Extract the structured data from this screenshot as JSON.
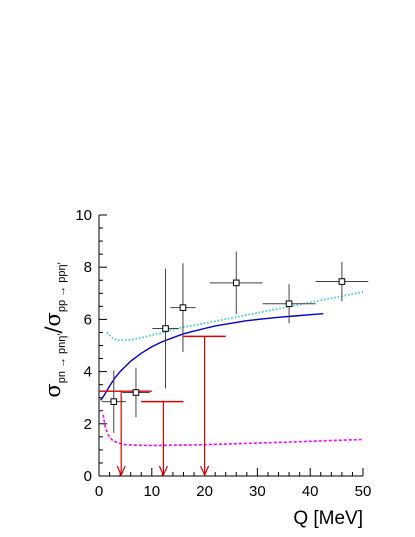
{
  "chart_data": {
    "type": "scatter",
    "xlabel": "Q [MeV]",
    "ylabel": {
      "numerator_symbol": "σ",
      "numerator_subscript": "pn → pnη′",
      "slash": "/",
      "denominator_symbol": "σ",
      "denominator_subscript": "pp → ppη′"
    },
    "xlim": [
      0,
      50
    ],
    "ylim": [
      0,
      10
    ],
    "x_ticks": [
      0,
      10,
      20,
      30,
      40,
      50
    ],
    "y_ticks": [
      0,
      2,
      4,
      6,
      8,
      10
    ],
    "x_tick_labels": [
      "0",
      "10",
      "20",
      "30",
      "40",
      "50"
    ],
    "y_tick_labels": [
      "0",
      "2",
      "4",
      "6",
      "8",
      "10"
    ],
    "grid": false,
    "series": [
      {
        "kind": "points",
        "color": "#000000",
        "marker": "open-square",
        "points": [
          {
            "x": 2.8,
            "y": 2.85,
            "xerr": 2.3,
            "yerr": 1.2
          },
          {
            "x": 7.0,
            "y": 3.2,
            "xerr": 2.6,
            "yerr": 0.95
          },
          {
            "x": 12.6,
            "y": 5.65,
            "xerr": 2.5,
            "yerr": 2.3
          },
          {
            "x": 15.9,
            "y": 6.45,
            "xerr": 2.4,
            "yerr": 1.7
          },
          {
            "x": 26.0,
            "y": 7.4,
            "xerr": 5.0,
            "yerr": 1.2
          },
          {
            "x": 36.0,
            "y": 6.6,
            "xerr": 5.0,
            "yerr": 0.75
          },
          {
            "x": 46.0,
            "y": 7.45,
            "xerr": 5.0,
            "yerr": 0.75
          }
        ]
      },
      {
        "kind": "upper-limits",
        "color": "#dd0000",
        "limits": [
          {
            "x": 4.2,
            "y": 3.25,
            "x_from": 0.0,
            "x_to": 10.0
          },
          {
            "x": 12.2,
            "y": 2.85,
            "x_from": 8.0,
            "x_to": 16.0
          },
          {
            "x": 20.0,
            "y": 5.35,
            "x_from": 16.0,
            "x_to": 24.0
          }
        ]
      },
      {
        "kind": "curve",
        "color": "#0000cc",
        "style": "solid",
        "x": [
          0.3,
          1.0,
          2.0,
          3.0,
          4.0,
          5.0,
          6.0,
          7.0,
          8.0,
          10.0,
          12.0,
          14.0,
          16.0,
          18.0,
          20.0,
          22.0,
          25.0,
          28.0,
          31.0,
          34.0,
          37.0,
          40.0,
          42.5
        ],
        "y": [
          2.9,
          3.1,
          3.45,
          3.75,
          4.0,
          4.2,
          4.4,
          4.55,
          4.7,
          4.95,
          5.15,
          5.3,
          5.45,
          5.55,
          5.65,
          5.75,
          5.85,
          5.95,
          6.02,
          6.08,
          6.13,
          6.18,
          6.22
        ]
      },
      {
        "kind": "curve",
        "color": "#33cccc",
        "style": "dotted",
        "x": [
          1.5,
          2.5,
          3.5,
          4.5,
          6.0,
          8.0,
          10.0,
          13.0,
          16.0,
          20.0,
          25.0,
          30.0,
          35.0,
          40.0,
          45.0,
          50.0
        ],
        "y": [
          5.5,
          5.3,
          5.2,
          5.2,
          5.22,
          5.3,
          5.4,
          5.55,
          5.7,
          5.85,
          6.05,
          6.25,
          6.45,
          6.65,
          6.85,
          7.05
        ]
      },
      {
        "kind": "curve",
        "color": "#ff00ff",
        "style": "dashed",
        "x": [
          0.8,
          1.2,
          1.8,
          2.5,
          3.5,
          5.0,
          7.0,
          10.0,
          14.0,
          20.0,
          28.0,
          36.0,
          44.0,
          50.0
        ],
        "y": [
          2.35,
          1.85,
          1.55,
          1.38,
          1.27,
          1.2,
          1.18,
          1.17,
          1.18,
          1.2,
          1.25,
          1.3,
          1.36,
          1.4
        ]
      }
    ]
  }
}
